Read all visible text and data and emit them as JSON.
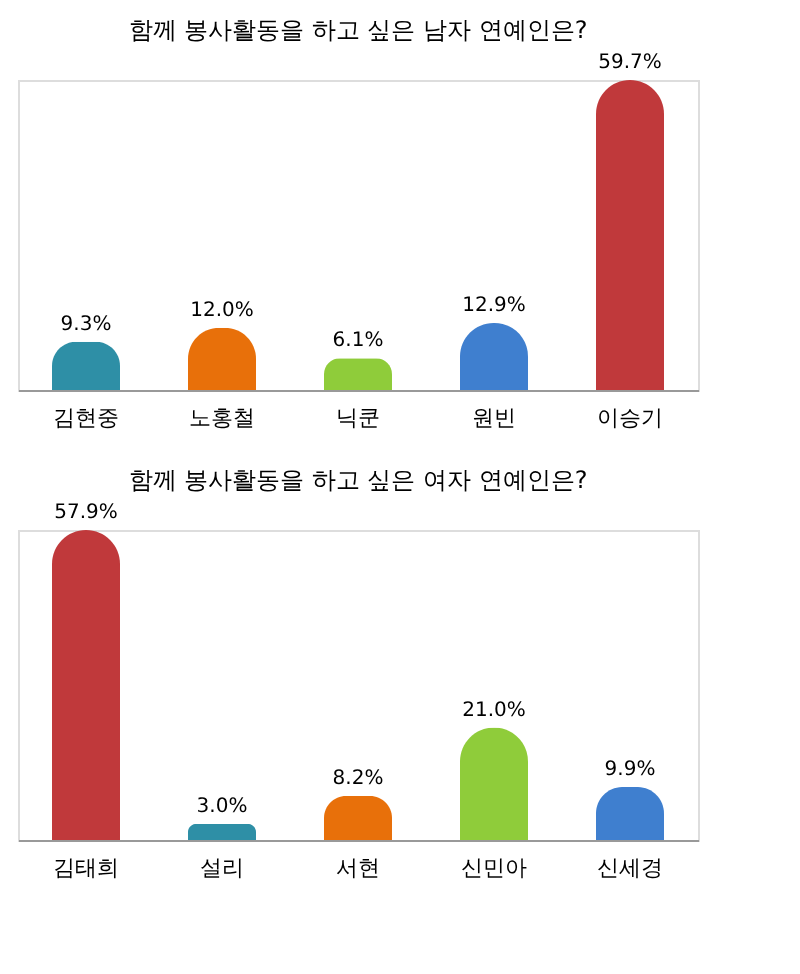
{
  "chart_data": [
    {
      "type": "bar",
      "title": "함께 봉사활동을 하고 싶은 남자 연예인은?",
      "categories": [
        "김현중",
        "노홍철",
        "닉쿤",
        "원빈",
        "이승기"
      ],
      "values": [
        9.3,
        12.0,
        6.1,
        12.9,
        59.7
      ],
      "colors": [
        "#2e8fa6",
        "#e8700a",
        "#8fcc3a",
        "#3f7fcf",
        "#c0393b"
      ],
      "value_labels": [
        "9.3%",
        "12.0%",
        "6.1%",
        "12.9%",
        "59.7%"
      ]
    },
    {
      "type": "bar",
      "title": "함께 봉사활동을 하고 싶은 여자 연예인은?",
      "categories": [
        "김태희",
        "설리",
        "서현",
        "신민아",
        "신세경"
      ],
      "values": [
        57.9,
        3.0,
        8.2,
        21.0,
        9.9
      ],
      "colors": [
        "#c0393b",
        "#2e8fa6",
        "#e8700a",
        "#8fcc3a",
        "#3f7fcf"
      ],
      "value_labels": [
        "57.9%",
        "3.0%",
        "8.2%",
        "21.0%",
        "9.9%"
      ]
    }
  ]
}
